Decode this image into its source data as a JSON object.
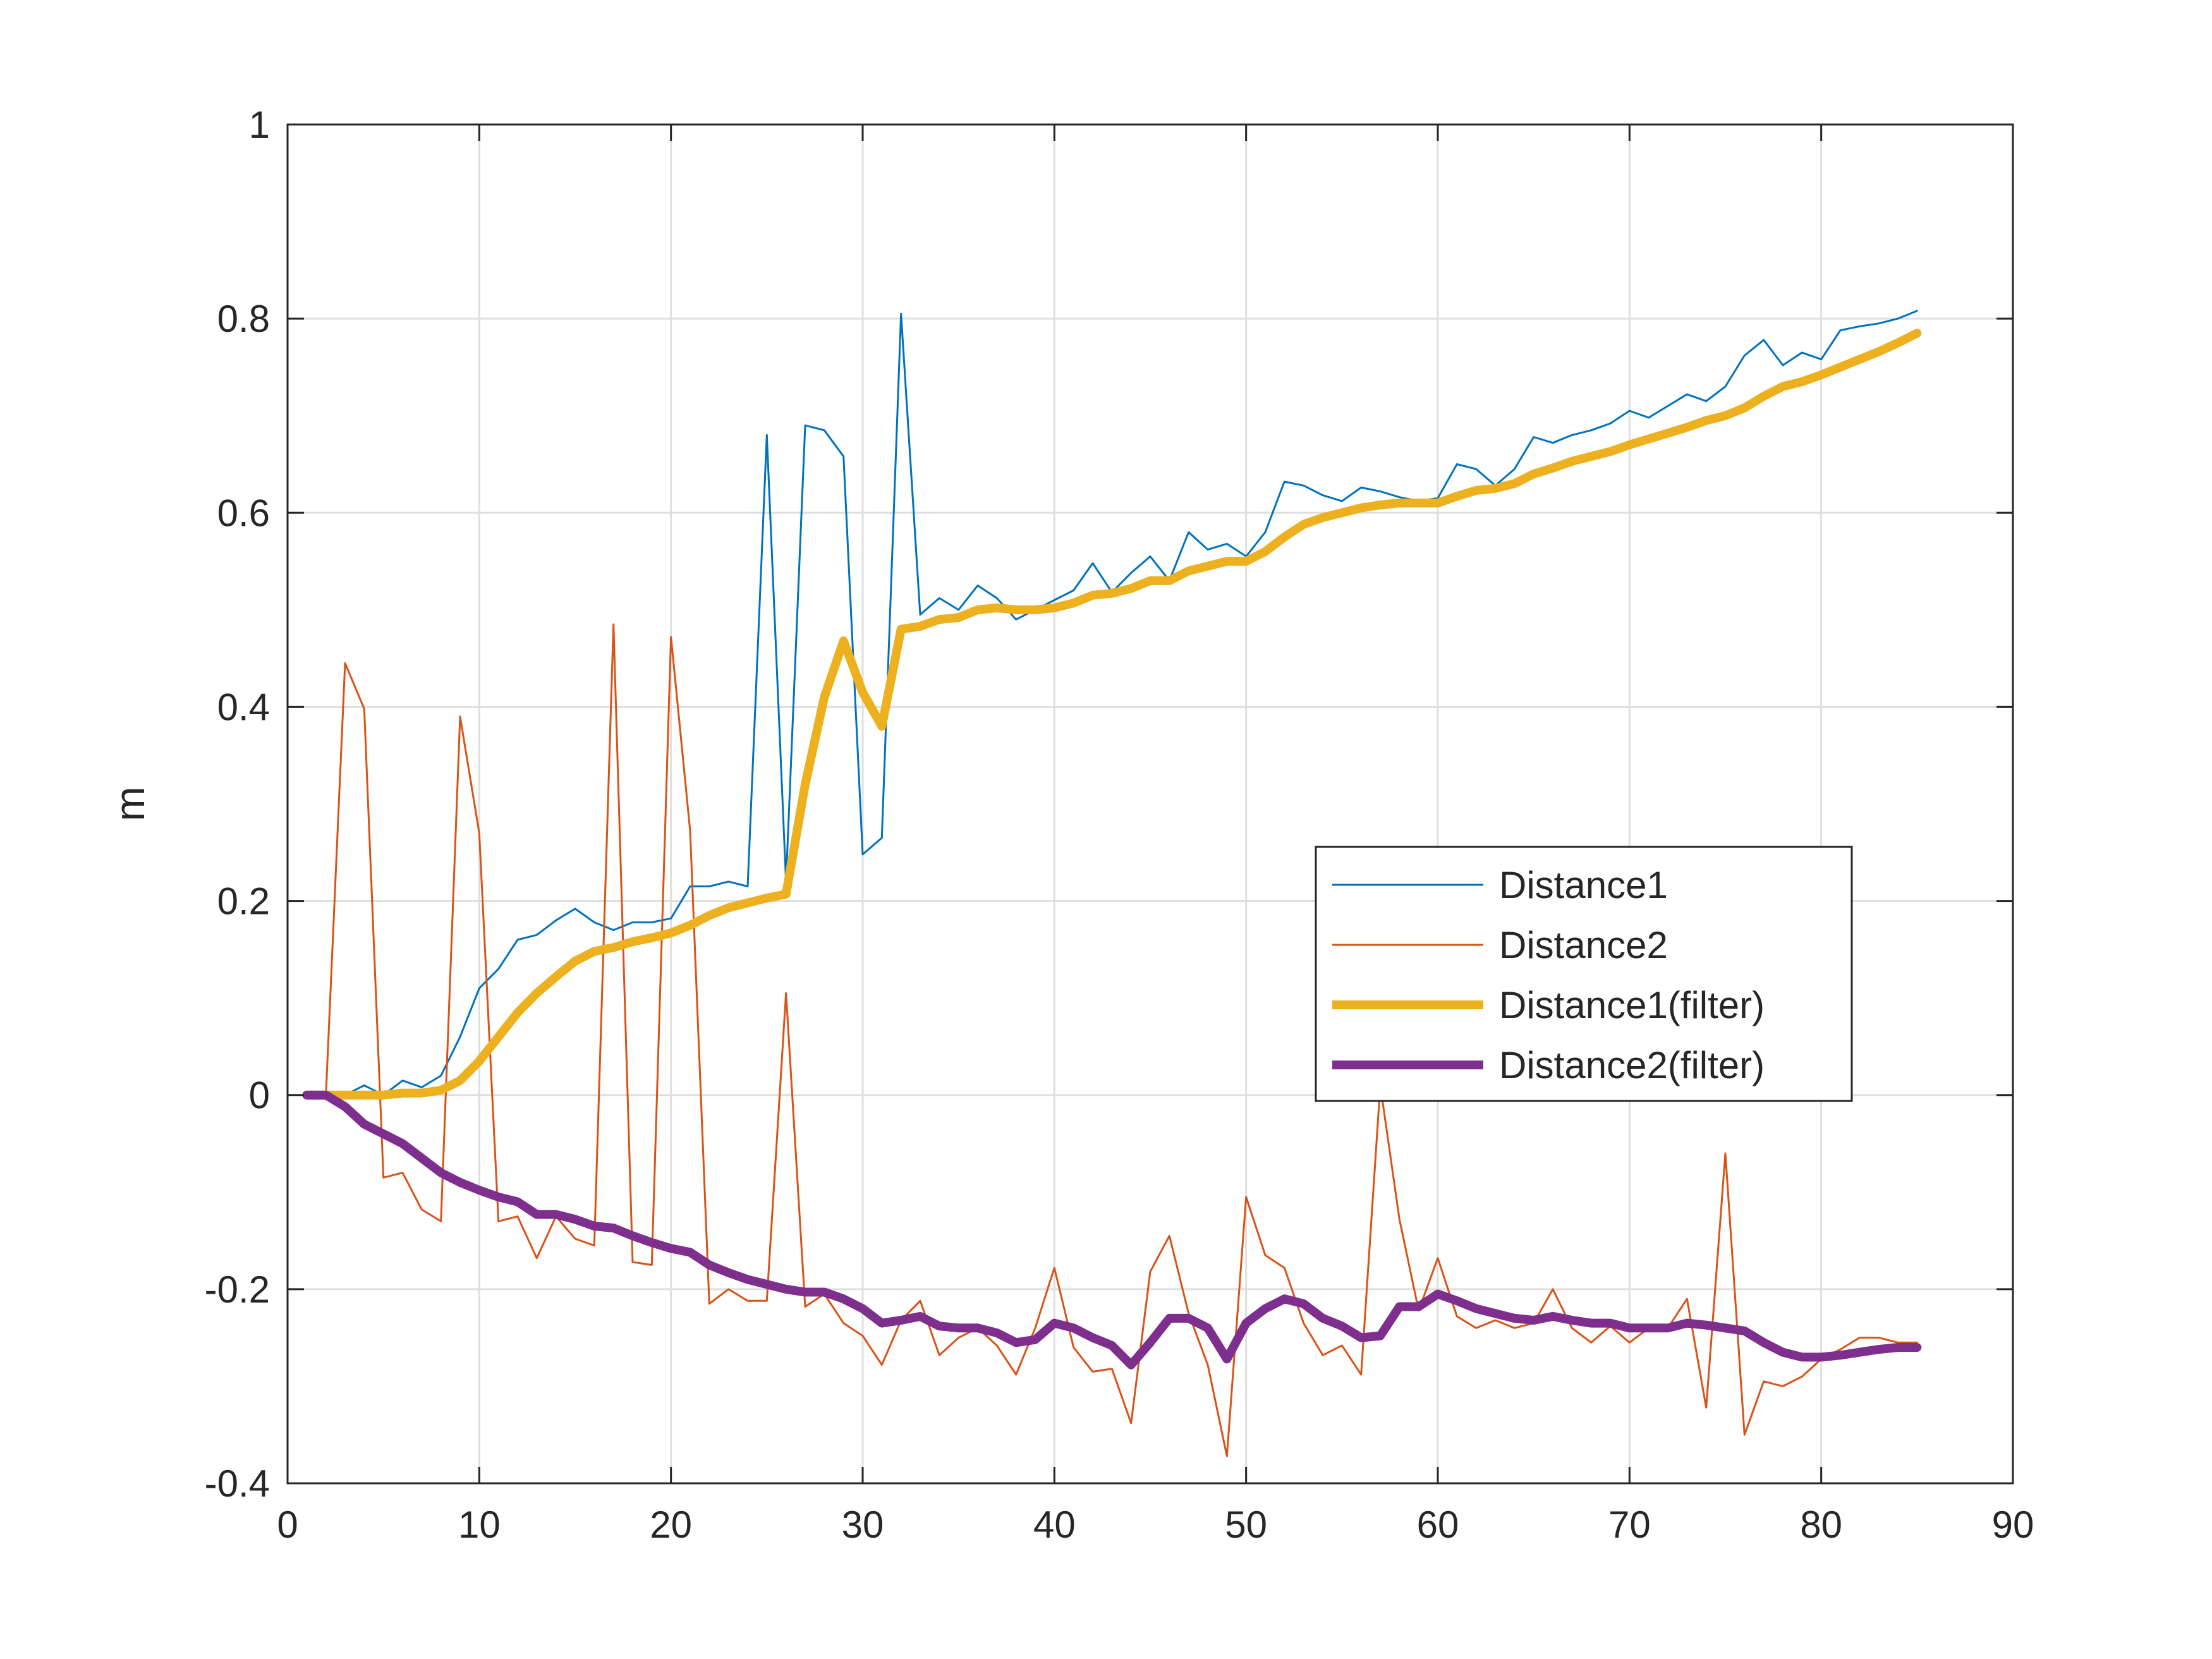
{
  "chart_data": {
    "type": "line",
    "title": "",
    "xlabel": "",
    "ylabel": "m",
    "xlim": [
      0,
      90
    ],
    "ylim": [
      -0.4,
      1
    ],
    "grid": true,
    "legend_position": "center-right",
    "x_ticks": [
      0,
      10,
      20,
      30,
      40,
      50,
      60,
      70,
      80,
      90
    ],
    "y_ticks": [
      -0.4,
      -0.2,
      0,
      0.2,
      0.4,
      0.6,
      0.8,
      1
    ],
    "x_tick_labels": [
      "0",
      "10",
      "20",
      "30",
      "40",
      "50",
      "60",
      "70",
      "80",
      "90"
    ],
    "y_tick_labels": [
      "-0.4",
      "-0.2",
      "0",
      "0.2",
      "0.4",
      "0.6",
      "0.8",
      "1"
    ],
    "series": [
      {
        "name": "Distance1",
        "color": "#0072BD",
        "line_width": "thin",
        "x_start": 1,
        "values": [
          0,
          0,
          0,
          0.01,
          0,
          0.015,
          0.008,
          0.02,
          0.06,
          0.11,
          0.13,
          0.16,
          0.165,
          0.18,
          0.192,
          0.178,
          0.17,
          0.178,
          0.178,
          0.182,
          0.215,
          0.215,
          0.22,
          0.215,
          0.68,
          0.22,
          0.69,
          0.685,
          0.658,
          0.248,
          0.265,
          0.805,
          0.495,
          0.512,
          0.5,
          0.525,
          0.512,
          0.49,
          0.5,
          0.51,
          0.52,
          0.548,
          0.518,
          0.538,
          0.555,
          0.53,
          0.58,
          0.562,
          0.568,
          0.555,
          0.58,
          0.632,
          0.628,
          0.618,
          0.612,
          0.626,
          0.622,
          0.616,
          0.612,
          0.615,
          0.65,
          0.645,
          0.628,
          0.645,
          0.678,
          0.672,
          0.68,
          0.685,
          0.692,
          0.705,
          0.698,
          0.71,
          0.722,
          0.715,
          0.73,
          0.762,
          0.778,
          0.752,
          0.765,
          0.758,
          0.788,
          0.792,
          0.795,
          0.8,
          0.808
        ]
      },
      {
        "name": "Distance2",
        "color": "#D95319",
        "line_width": "thin",
        "x_start": 1,
        "values": [
          0,
          0,
          0.445,
          0.398,
          -0.085,
          -0.08,
          -0.118,
          -0.13,
          0.39,
          0.27,
          -0.13,
          -0.125,
          -0.168,
          -0.125,
          -0.148,
          -0.155,
          0.485,
          -0.172,
          -0.175,
          0.472,
          0.272,
          -0.215,
          -0.2,
          -0.212,
          -0.212,
          0.105,
          -0.218,
          -0.205,
          -0.235,
          -0.248,
          -0.278,
          -0.232,
          -0.212,
          -0.268,
          -0.25,
          -0.24,
          -0.258,
          -0.288,
          -0.24,
          -0.178,
          -0.26,
          -0.285,
          -0.282,
          -0.338,
          -0.182,
          -0.145,
          -0.225,
          -0.278,
          -0.372,
          -0.105,
          -0.165,
          -0.178,
          -0.235,
          -0.268,
          -0.258,
          -0.288,
          0.01,
          -0.128,
          -0.222,
          -0.168,
          -0.228,
          -0.24,
          -0.232,
          -0.24,
          -0.235,
          -0.2,
          -0.24,
          -0.255,
          -0.238,
          -0.255,
          -0.24,
          -0.24,
          -0.21,
          -0.322,
          -0.06,
          -0.35,
          -0.295,
          -0.3,
          -0.29,
          -0.272,
          -0.262,
          -0.25,
          -0.25,
          -0.255,
          -0.255
        ]
      },
      {
        "name": "Distance1(filter)",
        "color": "#EDB120",
        "line_width": "thick",
        "x_start": 1,
        "values": [
          0,
          0,
          0,
          0,
          0,
          0.002,
          0.002,
          0.005,
          0.015,
          0.035,
          0.06,
          0.085,
          0.105,
          0.122,
          0.138,
          0.148,
          0.152,
          0.158,
          0.162,
          0.167,
          0.175,
          0.185,
          0.193,
          0.198,
          0.203,
          0.207,
          0.32,
          0.41,
          0.468,
          0.415,
          0.38,
          0.48,
          0.483,
          0.49,
          0.492,
          0.5,
          0.502,
          0.5,
          0.5,
          0.502,
          0.507,
          0.515,
          0.517,
          0.522,
          0.53,
          0.53,
          0.54,
          0.545,
          0.55,
          0.55,
          0.56,
          0.575,
          0.588,
          0.595,
          0.6,
          0.605,
          0.608,
          0.61,
          0.61,
          0.61,
          0.617,
          0.623,
          0.625,
          0.63,
          0.64,
          0.646,
          0.653,
          0.658,
          0.663,
          0.67,
          0.676,
          0.682,
          0.688,
          0.695,
          0.7,
          0.708,
          0.72,
          0.73,
          0.735,
          0.742,
          0.75,
          0.758,
          0.766,
          0.775,
          0.785
        ]
      },
      {
        "name": "Distance2(filter)",
        "color": "#7E2F8E",
        "line_width": "thick",
        "x_start": 1,
        "values": [
          0,
          0,
          -0.012,
          -0.03,
          -0.04,
          -0.05,
          -0.065,
          -0.08,
          -0.09,
          -0.098,
          -0.105,
          -0.11,
          -0.123,
          -0.123,
          -0.128,
          -0.135,
          -0.137,
          -0.145,
          -0.152,
          -0.158,
          -0.162,
          -0.175,
          -0.183,
          -0.19,
          -0.195,
          -0.2,
          -0.203,
          -0.203,
          -0.21,
          -0.22,
          -0.235,
          -0.232,
          -0.228,
          -0.238,
          -0.24,
          -0.24,
          -0.245,
          -0.255,
          -0.252,
          -0.235,
          -0.24,
          -0.25,
          -0.258,
          -0.278,
          -0.255,
          -0.23,
          -0.23,
          -0.24,
          -0.272,
          -0.235,
          -0.22,
          -0.21,
          -0.215,
          -0.23,
          -0.238,
          -0.25,
          -0.248,
          -0.218,
          -0.218,
          -0.205,
          -0.212,
          -0.22,
          -0.225,
          -0.23,
          -0.232,
          -0.228,
          -0.232,
          -0.235,
          -0.235,
          -0.24,
          -0.24,
          -0.24,
          -0.235,
          -0.237,
          -0.24,
          -0.243,
          -0.255,
          -0.265,
          -0.27,
          -0.27,
          -0.268,
          -0.265,
          -0.262,
          -0.26,
          -0.26
        ]
      }
    ]
  }
}
